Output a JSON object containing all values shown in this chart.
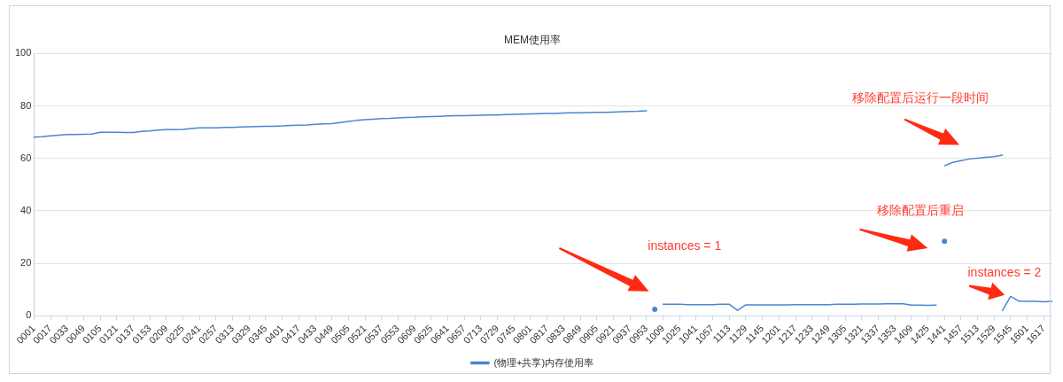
{
  "chart_data": {
    "type": "line",
    "title": "MEM使用率",
    "categories": [
      "0001",
      null,
      "0017",
      null,
      "0033",
      null,
      "0049",
      null,
      "0105",
      null,
      "0121",
      null,
      "0137",
      null,
      "0153",
      null,
      "0209",
      null,
      "0225",
      null,
      "0241",
      null,
      "0257",
      null,
      "0313",
      null,
      "0329",
      null,
      "0345",
      null,
      "0401",
      null,
      "0417",
      null,
      "0433",
      null,
      "0449",
      null,
      "0505",
      null,
      "0521",
      null,
      "0537",
      null,
      "0553",
      null,
      "0609",
      null,
      "0625",
      null,
      "0641",
      null,
      "0657",
      null,
      "0713",
      null,
      "0729",
      null,
      "0745",
      null,
      "0801",
      null,
      "0817",
      null,
      "0833",
      null,
      "0849",
      null,
      "0905",
      null,
      "0921",
      null,
      "0937",
      null,
      "0953",
      null,
      "1009",
      null,
      "1025",
      null,
      "1041",
      null,
      "1057",
      null,
      "1113",
      null,
      "1129",
      null,
      "1145",
      null,
      "1201",
      null,
      "1217",
      null,
      "1233",
      null,
      "1249",
      null,
      "1305",
      null,
      "1321",
      null,
      "1337",
      null,
      "1353",
      null,
      "1409",
      null,
      "1425",
      null,
      "1441",
      null,
      "1457",
      null,
      "1513",
      null,
      "1529",
      null,
      "1545",
      null,
      "1601",
      null,
      "1617",
      null
    ],
    "ylim": [
      0,
      100
    ],
    "yticks": [
      0,
      20,
      40,
      60,
      80,
      100
    ],
    "grid": "y",
    "legend": "bottom",
    "line_style": "solid",
    "series": [
      {
        "name": "(物理+共享)内存使用率",
        "color": "#4a86d0",
        "values": [
          68.1,
          68.3,
          68.6,
          68.9,
          69.1,
          69.1,
          69.2,
          69.3,
          70.0,
          70.0,
          70.0,
          69.9,
          69.9,
          70.3,
          70.5,
          70.8,
          71.0,
          71.0,
          71.1,
          71.4,
          71.7,
          71.7,
          71.7,
          71.8,
          71.8,
          72.0,
          72.1,
          72.2,
          72.3,
          72.3,
          72.4,
          72.6,
          72.7,
          72.8,
          73.0,
          73.2,
          73.3,
          73.7,
          74.1,
          74.5,
          74.8,
          75.0,
          75.2,
          75.3,
          75.5,
          75.6,
          75.7,
          75.9,
          76.0,
          76.1,
          76.2,
          76.3,
          76.3,
          76.4,
          76.5,
          76.6,
          76.6,
          76.7,
          76.8,
          76.9,
          77.0,
          77.1,
          77.2,
          77.2,
          77.3,
          77.4,
          77.4,
          77.5,
          77.6,
          77.6,
          77.7,
          77.8,
          77.9,
          78.0,
          78.2,
          null,
          4.4,
          4.4,
          4.4,
          4.3,
          4.3,
          4.3,
          4.3,
          4.4,
          4.4,
          2.1,
          4.2,
          4.2,
          4.2,
          4.2,
          4.2,
          4.2,
          4.3,
          4.3,
          4.3,
          4.3,
          4.3,
          4.4,
          4.4,
          4.4,
          4.5,
          4.5,
          4.5,
          4.6,
          4.6,
          4.6,
          4.1,
          4.1,
          4.0,
          4.1,
          null,
          null,
          null,
          null,
          null,
          null,
          null,
          2.0,
          7.4,
          5.6,
          5.5,
          5.5,
          5.4,
          5.5
        ]
      },
      {
        "type": "scatter",
        "color": "#4a86d0",
        "values": [
          null,
          null,
          null,
          null,
          null,
          null,
          null,
          null,
          null,
          null,
          null,
          null,
          null,
          null,
          null,
          null,
          null,
          null,
          null,
          null,
          null,
          null,
          null,
          null,
          null,
          null,
          null,
          null,
          null,
          null,
          null,
          null,
          null,
          null,
          null,
          null,
          null,
          null,
          null,
          null,
          null,
          null,
          null,
          null,
          null,
          null,
          null,
          null,
          null,
          null,
          null,
          null,
          null,
          null,
          null,
          null,
          null,
          null,
          null,
          null,
          null,
          null,
          null,
          null,
          null,
          null,
          null,
          null,
          null,
          null,
          null,
          null,
          null,
          null,
          null,
          2.5,
          null,
          null,
          null,
          null,
          null,
          null,
          null,
          null,
          null,
          null,
          null,
          null,
          null,
          null,
          null,
          null,
          null,
          null,
          null,
          null,
          null,
          null,
          null,
          null,
          null,
          null,
          null,
          null,
          null,
          null,
          null,
          null,
          null,
          null,
          28.4,
          null,
          null,
          null,
          null,
          null,
          null,
          null,
          null,
          null,
          null,
          null,
          null,
          null
        ]
      },
      {
        "color": "#4a86d0",
        "values": [
          null,
          null,
          null,
          null,
          null,
          null,
          null,
          null,
          null,
          null,
          null,
          null,
          null,
          null,
          null,
          null,
          null,
          null,
          null,
          null,
          null,
          null,
          null,
          null,
          null,
          null,
          null,
          null,
          null,
          null,
          null,
          null,
          null,
          null,
          null,
          null,
          null,
          null,
          null,
          null,
          null,
          null,
          null,
          null,
          null,
          null,
          null,
          null,
          null,
          null,
          null,
          null,
          null,
          null,
          null,
          null,
          null,
          null,
          null,
          null,
          null,
          null,
          null,
          null,
          null,
          null,
          null,
          null,
          null,
          null,
          null,
          null,
          null,
          null,
          null,
          null,
          null,
          null,
          null,
          null,
          null,
          null,
          null,
          null,
          null,
          null,
          null,
          null,
          null,
          null,
          null,
          null,
          null,
          null,
          null,
          null,
          null,
          null,
          null,
          null,
          null,
          null,
          null,
          null,
          null,
          null,
          null,
          null,
          null,
          null,
          57.2,
          58.5,
          59.2,
          59.8,
          60.1,
          60.4,
          60.7,
          61.3,
          null,
          null,
          null,
          null,
          null,
          null
        ]
      }
    ],
    "annotations": [
      "instances = 1",
      "移除配置后运行一段时间",
      "移除配置后重启",
      {
        "text": "instances = 2",
        "x": "1545",
        "y": 7.4
      }
    ]
  }
}
